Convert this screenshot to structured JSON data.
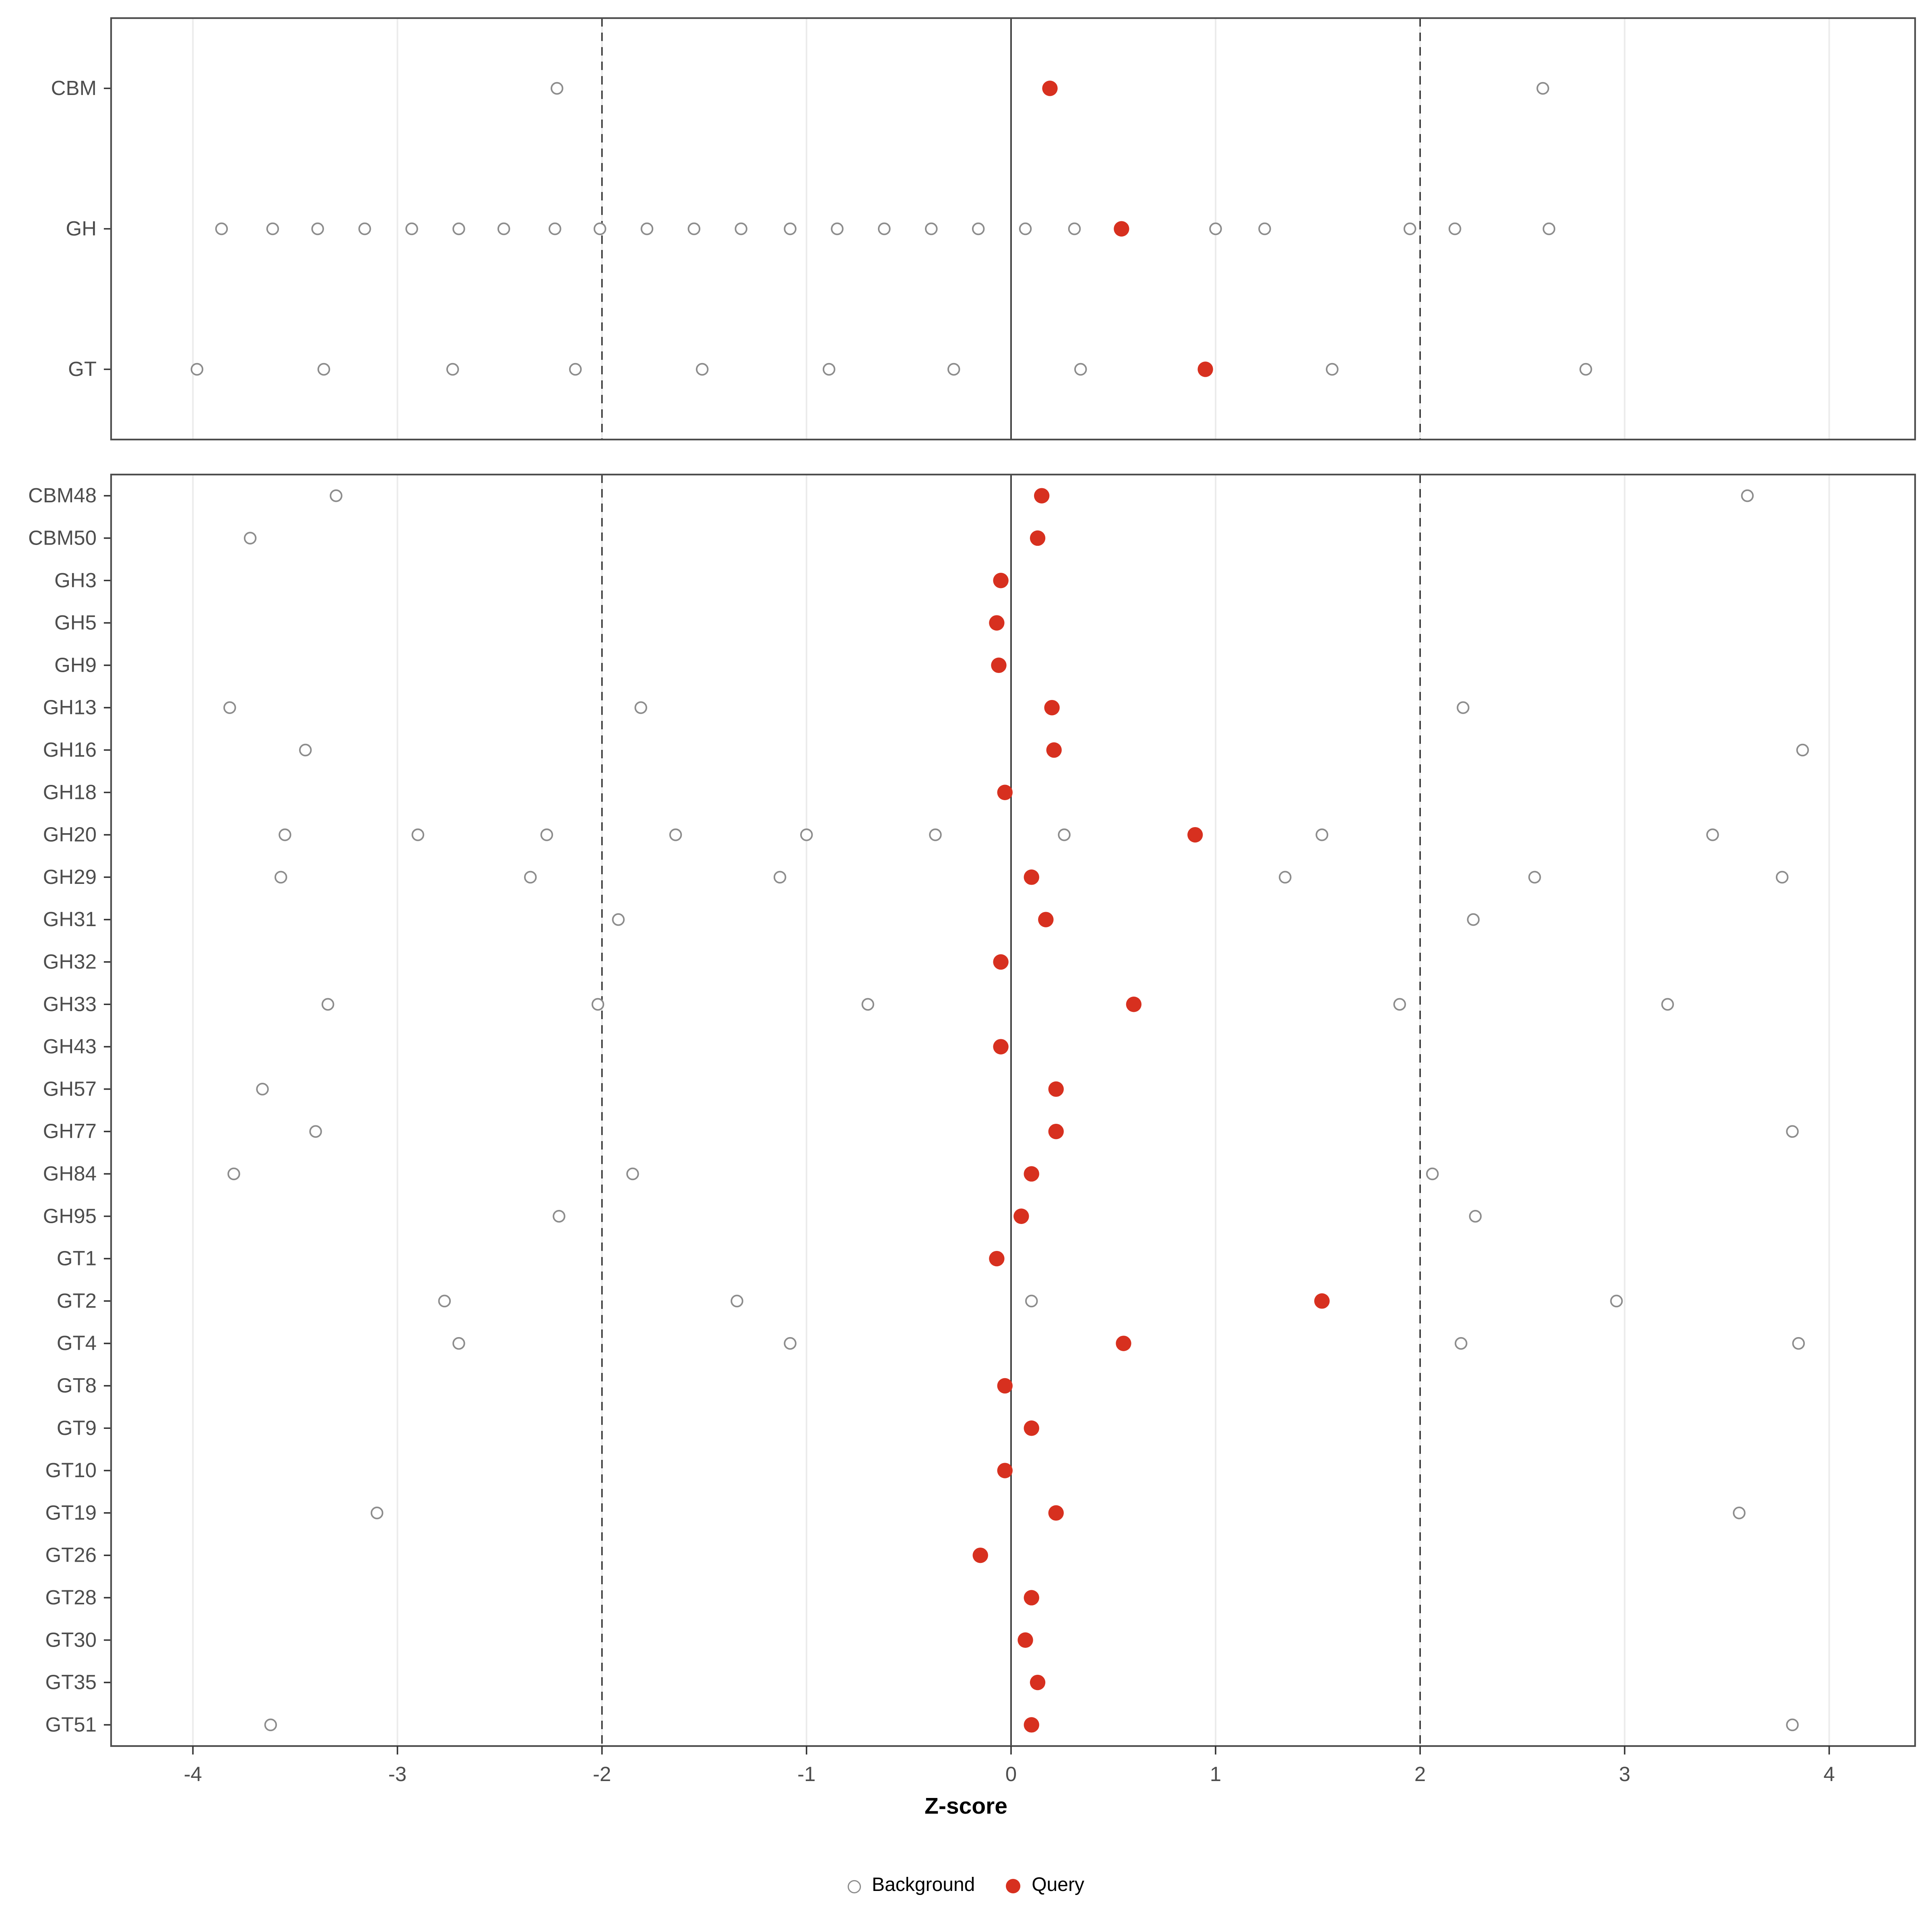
{
  "chart_data": {
    "type": "scatter",
    "title": "",
    "xlabel": "Z-score",
    "xlim": [
      -4.4,
      4.42
    ],
    "x_ticks": [
      -4,
      -3,
      -2,
      -1,
      0,
      1,
      2,
      3,
      4
    ],
    "grid": "vertical-major",
    "legend_position": "bottom",
    "reference_lines": {
      "solid": [
        0
      ],
      "dashed": [
        -2,
        2
      ]
    },
    "colors": {
      "query": "#d7301f",
      "background_stroke": "#8c8c8c",
      "panel_border": "#4d4d4d",
      "axis_text": "#4d4d4d",
      "gridline": "#ebebeb",
      "ref_line": "#333333"
    },
    "legend": [
      {
        "label": "Background",
        "style": "open-gray-circle"
      },
      {
        "label": "Query",
        "style": "filled-red-circle"
      }
    ],
    "panels": [
      {
        "name": "summary",
        "rows": [
          {
            "label": "CBM",
            "background": [
              -2.22,
              2.6
            ],
            "query": 0.19
          },
          {
            "label": "GH",
            "background": [
              -3.86,
              -3.61,
              -3.39,
              -3.16,
              -2.93,
              -2.7,
              -2.48,
              -2.23,
              -2.01,
              -1.78,
              -1.55,
              -1.32,
              -1.08,
              -0.85,
              -0.62,
              -0.39,
              -0.16,
              0.07,
              0.31,
              1.0,
              1.24,
              1.95,
              2.17,
              2.63
            ],
            "query": 0.54
          },
          {
            "label": "GT",
            "background": [
              -3.98,
              -3.36,
              -2.73,
              -2.13,
              -1.51,
              -0.89,
              -0.28,
              0.34,
              1.57,
              2.81
            ],
            "query": 0.95
          }
        ]
      },
      {
        "name": "families",
        "rows": [
          {
            "label": "CBM48",
            "background": [
              -3.3,
              3.6
            ],
            "query": 0.15
          },
          {
            "label": "CBM50",
            "background": [
              -3.72
            ],
            "query": 0.13
          },
          {
            "label": "GH3",
            "background": [],
            "query": -0.05
          },
          {
            "label": "GH5",
            "background": [],
            "query": -0.07
          },
          {
            "label": "GH9",
            "background": [],
            "query": -0.06
          },
          {
            "label": "GH13",
            "background": [
              -3.82,
              -1.81,
              2.21
            ],
            "query": 0.2
          },
          {
            "label": "GH16",
            "background": [
              -3.45,
              3.87
            ],
            "query": 0.21
          },
          {
            "label": "GH18",
            "background": [],
            "query": -0.03
          },
          {
            "label": "GH20",
            "background": [
              -3.55,
              -2.9,
              -2.27,
              -1.64,
              -1.0,
              -0.37,
              0.26,
              1.52,
              3.43
            ],
            "query": 0.9
          },
          {
            "label": "GH29",
            "background": [
              -3.57,
              -2.35,
              -1.13,
              1.34,
              2.56,
              3.77
            ],
            "query": 0.1
          },
          {
            "label": "GH31",
            "background": [
              -1.92,
              2.26
            ],
            "query": 0.17
          },
          {
            "label": "GH32",
            "background": [],
            "query": -0.05
          },
          {
            "label": "GH33",
            "background": [
              -3.34,
              -2.02,
              -0.7,
              1.9,
              3.21
            ],
            "query": 0.6
          },
          {
            "label": "GH43",
            "background": [],
            "query": -0.05
          },
          {
            "label": "GH57",
            "background": [
              -3.66
            ],
            "query": 0.22
          },
          {
            "label": "GH77",
            "background": [
              -3.4,
              3.82
            ],
            "query": 0.22
          },
          {
            "label": "GH84",
            "background": [
              -3.8,
              -1.85,
              2.06
            ],
            "query": 0.1
          },
          {
            "label": "GH95",
            "background": [
              -2.21,
              2.27
            ],
            "query": 0.05
          },
          {
            "label": "GT1",
            "background": [],
            "query": -0.07
          },
          {
            "label": "GT2",
            "background": [
              -2.77,
              -1.34,
              0.1,
              2.96
            ],
            "query": 1.52
          },
          {
            "label": "GT4",
            "background": [
              -2.7,
              -1.08,
              2.2,
              3.85
            ],
            "query": 0.55
          },
          {
            "label": "GT8",
            "background": [],
            "query": -0.03
          },
          {
            "label": "GT9",
            "background": [],
            "query": 0.1
          },
          {
            "label": "GT10",
            "background": [],
            "query": -0.03
          },
          {
            "label": "GT19",
            "background": [
              -3.1,
              3.56
            ],
            "query": 0.22
          },
          {
            "label": "GT26",
            "background": [],
            "query": -0.15
          },
          {
            "label": "GT28",
            "background": [],
            "query": 0.1
          },
          {
            "label": "GT30",
            "background": [],
            "query": 0.07
          },
          {
            "label": "GT35",
            "background": [],
            "query": 0.13
          },
          {
            "label": "GT51",
            "background": [
              -3.62,
              3.82
            ],
            "query": 0.1
          }
        ]
      }
    ]
  }
}
